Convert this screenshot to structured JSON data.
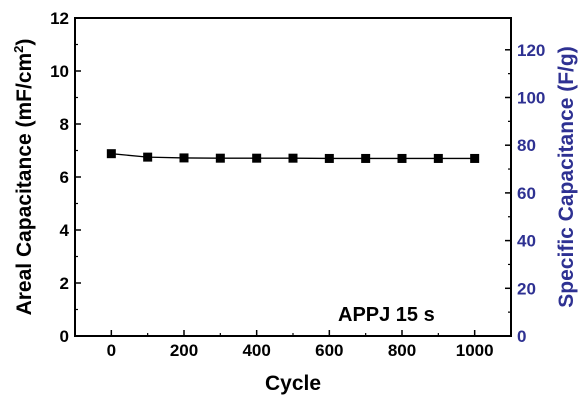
{
  "chart_data": {
    "type": "line",
    "xlabel": "Cycle",
    "ylabel_left": "Areal Capacitance (mF/cm",
    "ylabel_left_sup": "2",
    "ylabel_left_end": ")",
    "ylabel_right": "Specific Capacitance (F/g)",
    "annotation": "APPJ 15 s",
    "xlim": [
      -100,
      1100
    ],
    "ylim_left": [
      0,
      12
    ],
    "ylim_right": [
      0,
      133.33
    ],
    "x_ticks": [
      0,
      200,
      400,
      600,
      800,
      1000
    ],
    "y_left_ticks": [
      0,
      2,
      4,
      6,
      8,
      10,
      12
    ],
    "y_right_ticks": [
      0,
      20,
      40,
      60,
      80,
      100,
      120
    ],
    "right_axis_color": "#2e3192",
    "series": [
      {
        "marker": "square",
        "color": "#000000",
        "x": [
          0,
          100,
          200,
          300,
          400,
          500,
          600,
          700,
          800,
          900,
          1000
        ],
        "y": [
          6.88,
          6.75,
          6.72,
          6.71,
          6.71,
          6.71,
          6.7,
          6.7,
          6.7,
          6.7,
          6.7
        ]
      }
    ]
  }
}
